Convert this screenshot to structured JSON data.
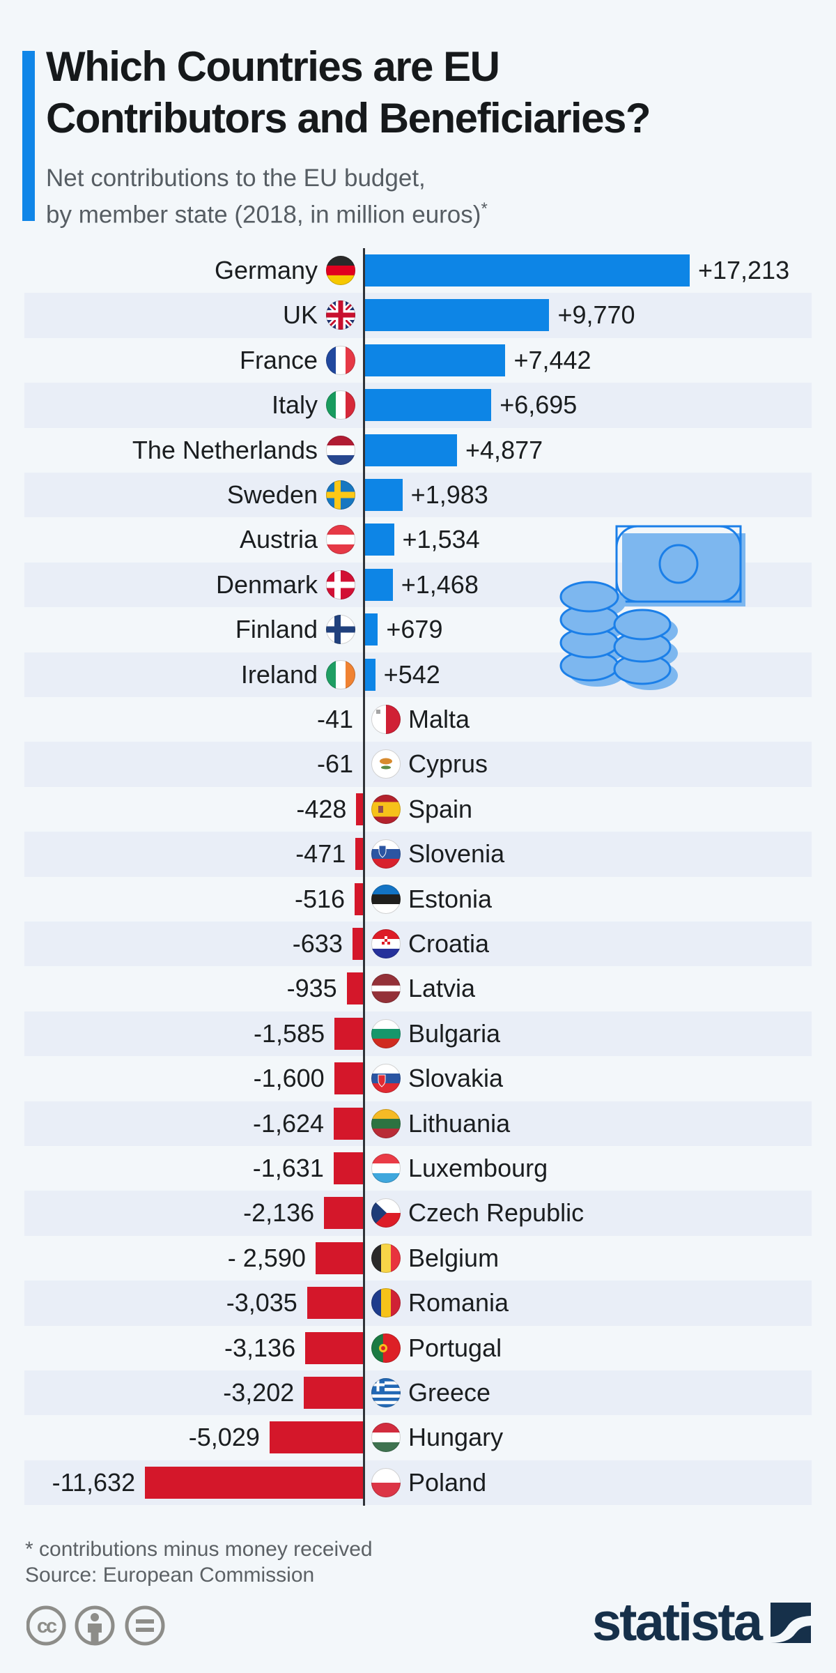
{
  "header": {
    "title_line1": "Which Countries are EU",
    "title_line2": "Contributors and Beneficiaries?",
    "subtitle_line1": "Net contributions to the EU budget,",
    "subtitle_line2": "by member state (2018, in million euros)",
    "subtitle_footnote_marker": "*"
  },
  "footer": {
    "footnote_line1": "* contributions minus money received",
    "footnote_line2": "Source: European Commission",
    "cc_text": "cc",
    "brand": "statista"
  },
  "colors": {
    "positive_bar": "#0d85e6",
    "negative_bar": "#d4172a",
    "accent": "#1086e8",
    "stripe": "#e9eef7",
    "brand_navy": "#16304a",
    "illustration_fill": "#7db7ef",
    "illustration_stroke": "#1b7fe8"
  },
  "chart_data": {
    "type": "bar",
    "orientation": "horizontal",
    "title": "Net contributions to the EU budget, by member state (2018, in million euros)",
    "unit": "million euros",
    "year": "2018",
    "zero_axis": true,
    "xlim": [
      -12000,
      18000
    ],
    "positive_color": "#0d85e6",
    "negative_color": "#d4172a",
    "entries": [
      {
        "country": "Germany",
        "value": 17213,
        "label": "+17,213",
        "flag": {
          "k": "h",
          "c": [
            "#2a2a2a",
            "#e1001f",
            "#f6c800"
          ]
        }
      },
      {
        "country": "UK",
        "value": 9770,
        "label": "+9,770",
        "flag": {
          "k": "uk"
        }
      },
      {
        "country": "France",
        "value": 7442,
        "label": "+7,442",
        "flag": {
          "k": "v",
          "c": [
            "#21489e",
            "#ffffff",
            "#e63946"
          ]
        }
      },
      {
        "country": "Italy",
        "value": 6695,
        "label": "+6,695",
        "flag": {
          "k": "v",
          "c": [
            "#199b5e",
            "#ffffff",
            "#d62839"
          ]
        }
      },
      {
        "country": "The Netherlands",
        "value": 4877,
        "label": "+4,877",
        "flag": {
          "k": "h",
          "c": [
            "#b11c33",
            "#ffffff",
            "#28478f"
          ]
        }
      },
      {
        "country": "Sweden",
        "value": 1983,
        "label": "+1,983",
        "flag": {
          "k": "nordic",
          "bg": "#1777c1",
          "cross": "#fdc816"
        }
      },
      {
        "country": "Austria",
        "value": 1534,
        "label": "+1,534",
        "flag": {
          "k": "h",
          "c": [
            "#e63946",
            "#ffffff",
            "#e63946"
          ]
        }
      },
      {
        "country": "Denmark",
        "value": 1468,
        "label": "+1,468",
        "flag": {
          "k": "nordic",
          "bg": "#d21034",
          "cross": "#ffffff"
        }
      },
      {
        "country": "Finland",
        "value": 679,
        "label": "+679",
        "flag": {
          "k": "nordic",
          "bg": "#ffffff",
          "cross": "#21417d"
        }
      },
      {
        "country": "Ireland",
        "value": 542,
        "label": "+542",
        "flag": {
          "k": "v",
          "c": [
            "#1f9e63",
            "#ffffff",
            "#f08232"
          ]
        }
      },
      {
        "country": "Malta",
        "value": -41,
        "label": "-41",
        "flag": {
          "k": "v",
          "c": [
            "#ffffff",
            "#d02035"
          ],
          "e": [
            {
              "t": "rect",
              "c": "#a5a5a5",
              "x": 7,
              "y": 7,
              "w": 6,
              "h": 6
            }
          ]
        }
      },
      {
        "country": "Cyprus",
        "value": -61,
        "label": "-61",
        "flag": {
          "k": "solid",
          "c": "#ffffff",
          "e": [
            {
              "t": "ellipse",
              "c": "#d78a2e",
              "x": 21,
              "y": 17,
              "rx": 9,
              "ry": 4.5
            },
            {
              "t": "ellipse",
              "c": "#5d8c46",
              "x": 21,
              "y": 26,
              "rx": 7,
              "ry": 2.5
            }
          ]
        }
      },
      {
        "country": "Spain",
        "value": -428,
        "label": "-428",
        "flag": {
          "k": "h",
          "c": [
            "#b3222d",
            "#f6c21a",
            "#b3222d"
          ],
          "w": [
            1,
            2,
            1
          ],
          "e": [
            {
              "t": "rect",
              "c": "#8f5050",
              "x": 10,
              "y": 16,
              "w": 7,
              "h": 10
            }
          ]
        }
      },
      {
        "country": "Slovenia",
        "value": -471,
        "label": "-471",
        "flag": {
          "k": "h",
          "c": [
            "#ffffff",
            "#2b55a2",
            "#d8222e"
          ],
          "e": [
            {
              "t": "shield",
              "c": "#2b55a2",
              "x": 11,
              "y": 9
            }
          ]
        }
      },
      {
        "country": "Estonia",
        "value": -516,
        "label": "-516",
        "flag": {
          "k": "h",
          "c": [
            "#1273c4",
            "#201f1d",
            "#ffffff"
          ]
        }
      },
      {
        "country": "Croatia",
        "value": -633,
        "label": "-633",
        "flag": {
          "k": "h",
          "c": [
            "#dd1c27",
            "#ffffff",
            "#25319b"
          ],
          "e": [
            {
              "t": "checker",
              "x": 15,
              "y": 10
            }
          ]
        }
      },
      {
        "country": "Latvia",
        "value": -935,
        "label": "-935",
        "flag": {
          "k": "h",
          "c": [
            "#943138",
            "#ffffff",
            "#943138"
          ],
          "w": [
            2,
            1,
            2
          ]
        }
      },
      {
        "country": "Bulgaria",
        "value": -1585,
        "label": "-1,585",
        "flag": {
          "k": "h",
          "c": [
            "#ffffff",
            "#16976b",
            "#d02b20"
          ]
        }
      },
      {
        "country": "Slovakia",
        "value": -1600,
        "label": "-1,600",
        "flag": {
          "k": "h",
          "c": [
            "#ffffff",
            "#2b55a2",
            "#e12a32"
          ],
          "e": [
            {
              "t": "shield",
              "c": "#e12a32",
              "x": 10,
              "y": 16
            }
          ]
        }
      },
      {
        "country": "Lithuania",
        "value": -1624,
        "label": "-1,624",
        "flag": {
          "k": "h",
          "c": [
            "#f5ba25",
            "#2d7341",
            "#b92c37"
          ]
        }
      },
      {
        "country": "Luxembourg",
        "value": -1631,
        "label": "-1,631",
        "flag": {
          "k": "h",
          "c": [
            "#ea3b46",
            "#ffffff",
            "#3fa7dd"
          ]
        }
      },
      {
        "country": "Czech Republic",
        "value": -2136,
        "label": "-2,136",
        "flag": {
          "k": "czech",
          "c": [
            "#ffffff",
            "#dd1c27",
            "#1e3c78"
          ]
        }
      },
      {
        "country": "Belgium",
        "value": -2590,
        "label": "- 2,590",
        "flag": {
          "k": "v",
          "c": [
            "#2a2a2a",
            "#f8d548",
            "#e8333e"
          ]
        }
      },
      {
        "country": "Romania",
        "value": -3035,
        "label": "-3,035",
        "flag": {
          "k": "v",
          "c": [
            "#1e3c8c",
            "#f6c21a",
            "#d02235"
          ]
        }
      },
      {
        "country": "Portugal",
        "value": -3136,
        "label": "-3,136",
        "flag": {
          "k": "v",
          "c": [
            "#1b7a43",
            "#dd2026"
          ],
          "w": [
            2,
            3
          ],
          "e": [
            {
              "t": "circle",
              "c": "#f6c21a",
              "x": 17,
              "y": 21,
              "r": 6
            },
            {
              "t": "circle",
              "c": "#dd2026",
              "x": 17,
              "y": 21,
              "r": 3
            }
          ]
        }
      },
      {
        "country": "Greece",
        "value": -3202,
        "label": "-3,202",
        "flag": {
          "k": "greece",
          "c": [
            "#2268b5",
            "#ffffff"
          ]
        }
      },
      {
        "country": "Hungary",
        "value": -5029,
        "label": "-5,029",
        "flag": {
          "k": "h",
          "c": [
            "#d22c3e",
            "#ffffff",
            "#3f7350"
          ]
        }
      },
      {
        "country": "Poland",
        "value": -11632,
        "label": "-11,632",
        "flag": {
          "k": "h",
          "c": [
            "#ffffff",
            "#dc3546"
          ]
        }
      }
    ]
  }
}
